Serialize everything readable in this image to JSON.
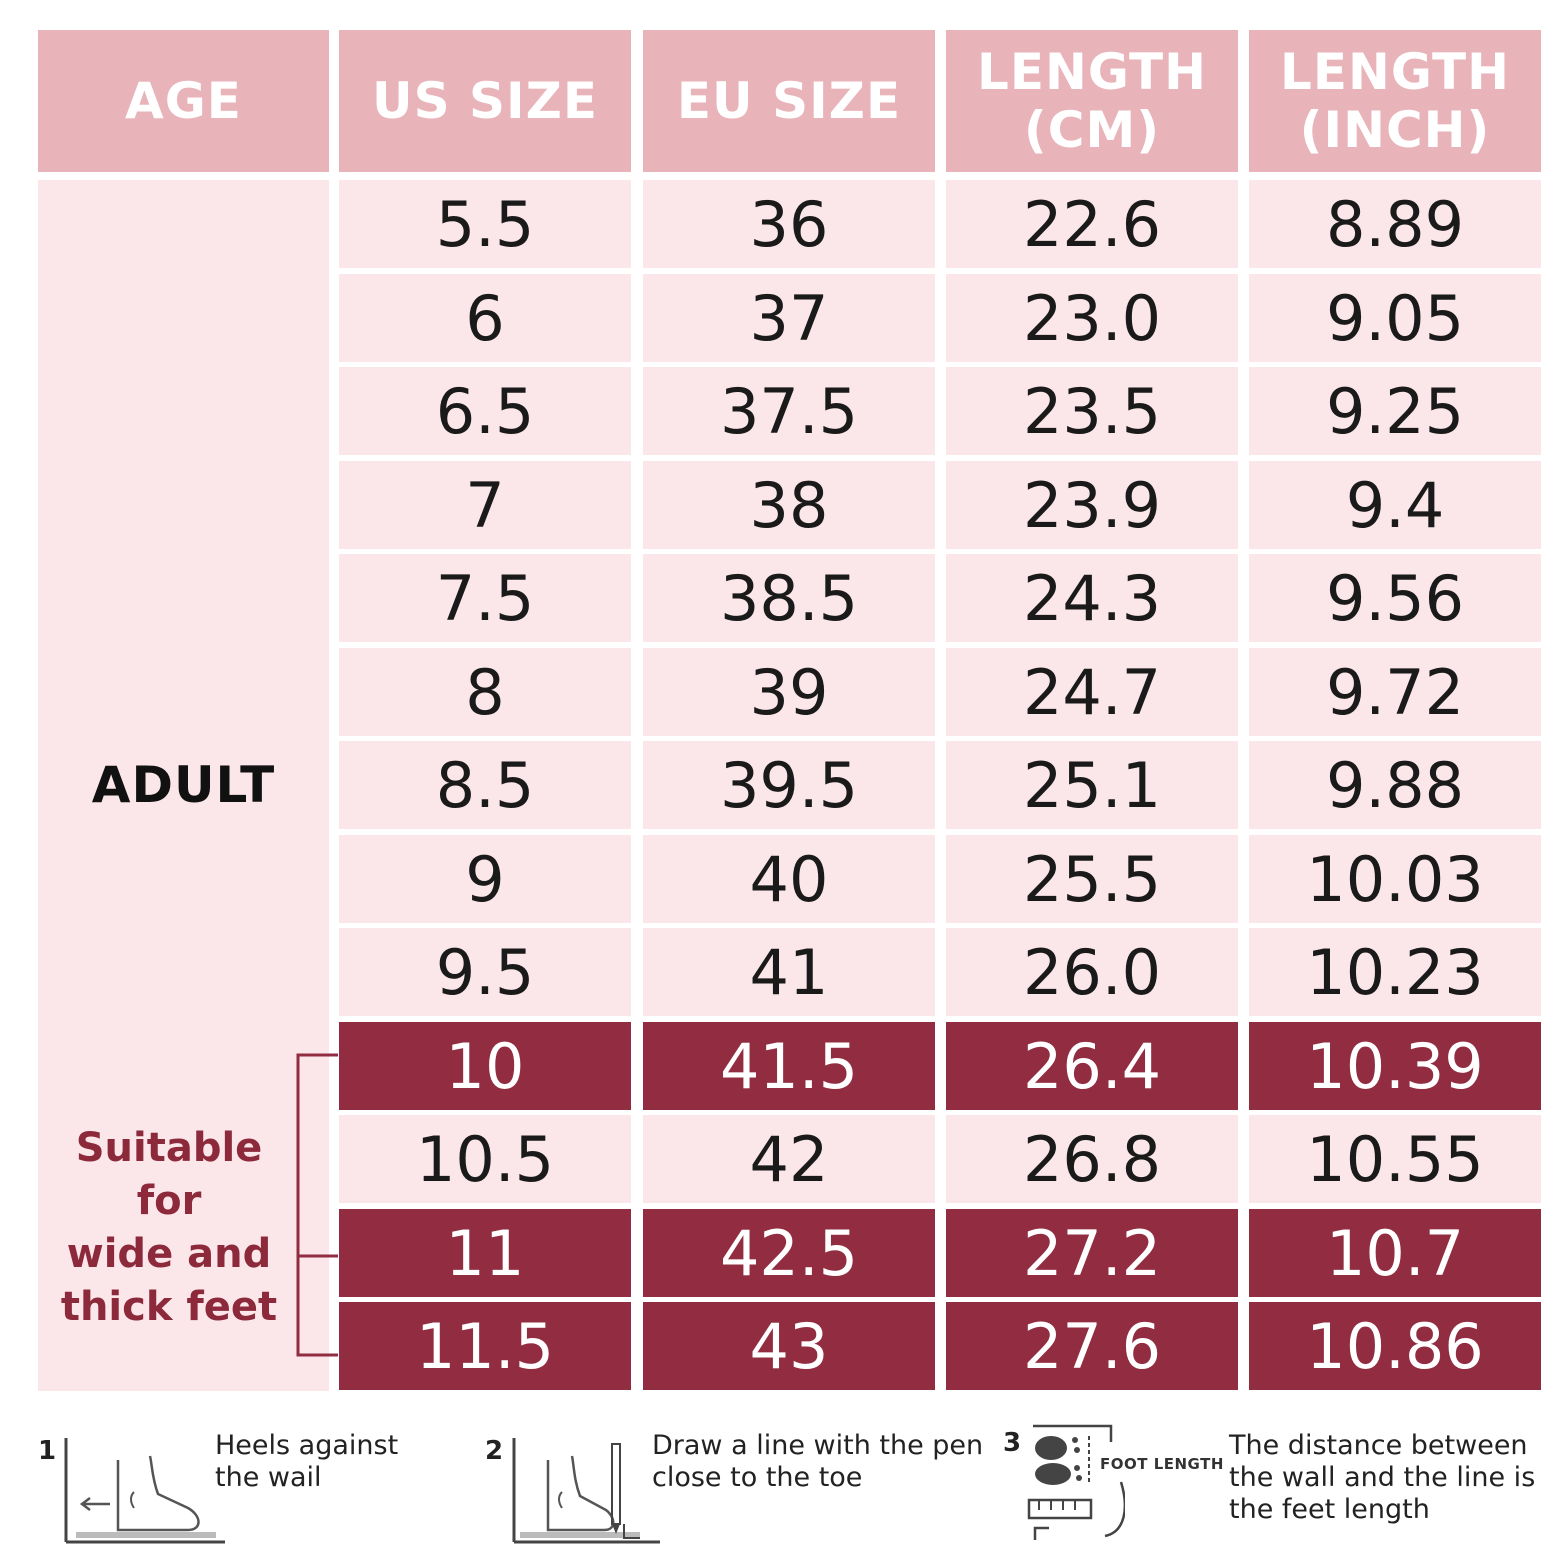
{
  "table": {
    "headers": {
      "age": "AGE",
      "us": "US SIZE",
      "eu": "EU SIZE",
      "cm_line1": "LENGTH",
      "cm_line2": "(CM)",
      "inch_line1": "LENGTH",
      "inch_line2": "(INCH)"
    },
    "age_group": "ADULT",
    "wide_note_lines": [
      "Suitable for",
      "wide and",
      "thick feet"
    ],
    "rows": [
      {
        "us": "5.5",
        "eu": "36",
        "cm": "22.6",
        "inch": "8.89",
        "highlight": false
      },
      {
        "us": "6",
        "eu": "37",
        "cm": "23.0",
        "inch": "9.05",
        "highlight": false
      },
      {
        "us": "6.5",
        "eu": "37.5",
        "cm": "23.5",
        "inch": "9.25",
        "highlight": false
      },
      {
        "us": "7",
        "eu": "38",
        "cm": "23.9",
        "inch": "9.4",
        "highlight": false
      },
      {
        "us": "7.5",
        "eu": "38.5",
        "cm": "24.3",
        "inch": "9.56",
        "highlight": false
      },
      {
        "us": "8",
        "eu": "39",
        "cm": "24.7",
        "inch": "9.72",
        "highlight": false
      },
      {
        "us": "8.5",
        "eu": "39.5",
        "cm": "25.1",
        "inch": "9.88",
        "highlight": false
      },
      {
        "us": "9",
        "eu": "40",
        "cm": "25.5",
        "inch": "10.03",
        "highlight": false
      },
      {
        "us": "9.5",
        "eu": "41",
        "cm": "26.0",
        "inch": "10.23",
        "highlight": false
      },
      {
        "us": "10",
        "eu": "41.5",
        "cm": "26.4",
        "inch": "10.39",
        "highlight": true
      },
      {
        "us": "10.5",
        "eu": "42",
        "cm": "26.8",
        "inch": "10.55",
        "highlight": false
      },
      {
        "us": "11",
        "eu": "42.5",
        "cm": "27.2",
        "inch": "10.7",
        "highlight": true
      },
      {
        "us": "11.5",
        "eu": "43",
        "cm": "27.6",
        "inch": "10.86",
        "highlight": true
      }
    ]
  },
  "steps": [
    {
      "number": "1",
      "lines": [
        "Heels against",
        "the wail"
      ]
    },
    {
      "number": "2",
      "lines": [
        "Draw a line with the pen",
        "close to the toe"
      ]
    },
    {
      "number": "3",
      "lines": [
        "The distance between",
        "the wall and the line is",
        "the feet length"
      ],
      "diagram_label": "FOOT LENGTH"
    }
  ],
  "colors": {
    "header_bg": "#e8b3b9",
    "cell_bg": "#fbe6e9",
    "highlight_bg": "#922c41",
    "note_text": "#8c2a3c"
  },
  "chart_data": {
    "type": "table",
    "columns": [
      "AGE",
      "US SIZE",
      "EU SIZE",
      "LENGTH (CM)",
      "LENGTH (INCH)"
    ],
    "rows": [
      [
        "ADULT",
        "5.5",
        "36",
        "22.6",
        "8.89"
      ],
      [
        "ADULT",
        "6",
        "37",
        "23.0",
        "9.05"
      ],
      [
        "ADULT",
        "6.5",
        "37.5",
        "23.5",
        "9.25"
      ],
      [
        "ADULT",
        "7",
        "38",
        "23.9",
        "9.4"
      ],
      [
        "ADULT",
        "7.5",
        "38.5",
        "24.3",
        "9.56"
      ],
      [
        "ADULT",
        "8",
        "39",
        "24.7",
        "9.72"
      ],
      [
        "ADULT",
        "8.5",
        "39.5",
        "25.1",
        "9.88"
      ],
      [
        "ADULT",
        "9",
        "40",
        "25.5",
        "10.03"
      ],
      [
        "ADULT",
        "9.5",
        "41",
        "26.0",
        "10.23"
      ],
      [
        "ADULT",
        "10",
        "41.5",
        "26.4",
        "10.39"
      ],
      [
        "ADULT",
        "10.5",
        "42",
        "26.8",
        "10.55"
      ],
      [
        "ADULT",
        "11",
        "42.5",
        "27.2",
        "10.7"
      ],
      [
        "ADULT",
        "11.5",
        "43",
        "27.6",
        "10.86"
      ]
    ]
  }
}
